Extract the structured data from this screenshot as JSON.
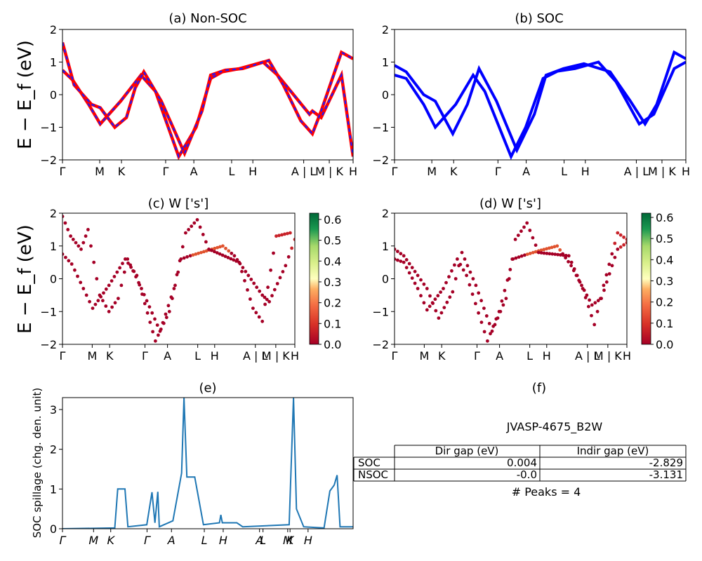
{
  "colors": {
    "nonsoc_red": "#ff0000",
    "dash_blue": "#1a1aff",
    "soc_blue": "#0000ff",
    "spill_line": "#1f77b4",
    "axis": "#000000"
  },
  "chart_data": [
    {
      "type": "line",
      "title": "(a) Non-SOC",
      "ylabel": "E − E_f (eV)",
      "ylim": [
        -2,
        2
      ],
      "yticks": [
        "2",
        "1",
        "0",
        "−1",
        "−2"
      ],
      "xticks": [
        "Γ",
        "M",
        "K",
        "Γ",
        "A",
        "L",
        "H",
        "A | L",
        "M | K",
        "H"
      ],
      "series_style": "red solid with blue dashes",
      "series": [
        {
          "values": [
            [
              0,
              0.75
            ],
            [
              0.35,
              0.45
            ],
            [
              0.9,
              -0.3
            ],
            [
              1.3,
              -0.9
            ],
            [
              2.0,
              -0.2
            ],
            [
              2.7,
              0.6
            ],
            [
              3.2,
              0.1
            ],
            [
              4.0,
              -1.9
            ],
            [
              4.6,
              -1.0
            ],
            [
              5.1,
              0.5
            ],
            [
              5.5,
              0.7
            ],
            [
              6.1,
              0.8
            ],
            [
              6.9,
              1.0
            ],
            [
              7.4,
              0.6
            ],
            [
              8.5,
              -0.6
            ],
            [
              8.6,
              -0.5
            ],
            [
              8.9,
              -0.7
            ],
            [
              9.6,
              0.6
            ],
            [
              10,
              -1.9
            ]
          ]
        },
        {
          "values": [
            [
              0,
              1.6
            ],
            [
              0.4,
              0.3
            ],
            [
              1.0,
              -0.3
            ],
            [
              1.3,
              -0.4
            ],
            [
              1.8,
              -1.0
            ],
            [
              2.2,
              -0.7
            ],
            [
              2.5,
              0.2
            ],
            [
              2.8,
              0.7
            ],
            [
              3.4,
              -0.2
            ],
            [
              4.2,
              -1.8
            ],
            [
              4.8,
              -0.5
            ],
            [
              5.1,
              0.6
            ],
            [
              5.6,
              0.75
            ],
            [
              6.2,
              0.8
            ],
            [
              7.1,
              1.05
            ],
            [
              7.6,
              0.3
            ],
            [
              8.2,
              -0.8
            ],
            [
              8.6,
              -1.2
            ],
            [
              8.9,
              -0.5
            ],
            [
              9.6,
              1.3
            ],
            [
              10,
              1.1
            ]
          ]
        }
      ]
    },
    {
      "type": "line",
      "title": "(b) SOC",
      "ylim": [
        -2,
        2
      ],
      "yticks": [
        "2",
        "1",
        "0",
        "−1",
        "−2"
      ],
      "xticks": [
        "Γ",
        "M",
        "K",
        "Γ",
        "A",
        "L",
        "H",
        "A | L",
        "M | K",
        "H"
      ],
      "series_style": "blue solid",
      "series": [
        {
          "values": [
            [
              0,
              0.6
            ],
            [
              0.4,
              0.5
            ],
            [
              1.0,
              -0.3
            ],
            [
              1.4,
              -1.0
            ],
            [
              2.1,
              -0.3
            ],
            [
              2.7,
              0.6
            ],
            [
              3.1,
              0.1
            ],
            [
              4.0,
              -1.9
            ],
            [
              4.5,
              -1.0
            ],
            [
              5.1,
              0.5
            ],
            [
              5.6,
              0.72
            ],
            [
              6.2,
              0.8
            ],
            [
              7.0,
              1.0
            ],
            [
              7.6,
              0.4
            ],
            [
              8.4,
              -0.9
            ],
            [
              8.9,
              -0.6
            ],
            [
              9.6,
              0.8
            ],
            [
              10,
              1.0
            ]
          ]
        },
        {
          "values": [
            [
              0,
              0.9
            ],
            [
              0.4,
              0.7
            ],
            [
              1.0,
              0.0
            ],
            [
              1.4,
              -0.2
            ],
            [
              2.0,
              -1.2
            ],
            [
              2.5,
              -0.3
            ],
            [
              2.9,
              0.8
            ],
            [
              3.5,
              -0.2
            ],
            [
              4.2,
              -1.7
            ],
            [
              4.8,
              -0.6
            ],
            [
              5.2,
              0.6
            ],
            [
              5.8,
              0.8
            ],
            [
              6.5,
              0.95
            ],
            [
              7.4,
              0.7
            ],
            [
              8.1,
              -0.2
            ],
            [
              8.6,
              -0.9
            ],
            [
              9.0,
              -0.3
            ],
            [
              9.6,
              1.3
            ],
            [
              10,
              1.1
            ]
          ]
        }
      ]
    },
    {
      "type": "scatter",
      "title": "(c)  W ['s']",
      "ylabel": "E − E_f (eV)",
      "ylim": [
        -2,
        2
      ],
      "yticks": [
        "2",
        "1",
        "0",
        "−1",
        "−2"
      ],
      "xticks": [
        "Γ",
        "M",
        "K",
        "Γ",
        "A",
        "L",
        "H",
        "A | L",
        "M | K",
        "H"
      ],
      "colorbar": {
        "ticks": [
          "0.6",
          "0.5",
          "0.4",
          "0.3",
          "0.2",
          "0.1",
          "0.0"
        ],
        "range": [
          0,
          0.63
        ],
        "cmap": "RdYlGn"
      },
      "series": [
        {
          "values": [
            [
              0,
              0.75
            ],
            [
              0.4,
              0.45
            ],
            [
              0.9,
              -0.3
            ],
            [
              1.3,
              -0.9
            ],
            [
              2.0,
              -0.2
            ],
            [
              2.7,
              0.6
            ],
            [
              3.2,
              0.1
            ],
            [
              4.0,
              -1.9
            ],
            [
              4.6,
              -1.0
            ],
            [
              5.1,
              0.6
            ],
            [
              5.5,
              0.7
            ],
            [
              6.2,
              0.85
            ],
            [
              6.9,
              1.0
            ],
            [
              7.4,
              0.7
            ],
            [
              8.6,
              -0.5
            ],
            [
              8.9,
              -0.7
            ],
            [
              9.6,
              0.4
            ],
            [
              10,
              1.2
            ]
          ]
        },
        {
          "values": [
            [
              0,
              1.9
            ],
            [
              0.35,
              1.3
            ],
            [
              0.8,
              0.9
            ],
            [
              1.1,
              1.5
            ],
            [
              1.6,
              -0.5
            ],
            [
              2.0,
              -1.0
            ],
            [
              2.4,
              -0.6
            ],
            [
              2.8,
              0.6
            ],
            [
              3.4,
              -0.3
            ],
            [
              4.2,
              -1.6
            ],
            [
              4.8,
              -0.3
            ],
            [
              5.3,
              1.4
            ],
            [
              5.8,
              1.8
            ],
            [
              6.3,
              0.9
            ],
            [
              7.6,
              0.5
            ],
            [
              8.2,
              -0.9
            ],
            [
              8.6,
              -1.3
            ],
            [
              9.2,
              1.3
            ],
            [
              9.8,
              1.4
            ]
          ]
        }
      ]
    },
    {
      "type": "scatter",
      "title": "(d) W ['s']",
      "ylim": [
        -2,
        2
      ],
      "yticks": [
        "2",
        "1",
        "0",
        "−1",
        "−2"
      ],
      "xticks": [
        "Γ",
        "M",
        "K",
        "Γ",
        "A",
        "L",
        "H",
        "A | L",
        "M | K",
        "H"
      ],
      "colorbar": {
        "ticks": [
          "0.6",
          "0.5",
          "0.4",
          "0.3",
          "0.2",
          "0.1",
          "0.0"
        ],
        "range": [
          0,
          0.62
        ],
        "cmap": "RdYlGn"
      },
      "series": [
        {
          "values": [
            [
              0,
              0.6
            ],
            [
              0.4,
              0.5
            ],
            [
              1.0,
              -0.3
            ],
            [
              1.4,
              -0.95
            ],
            [
              2.1,
              -0.3
            ],
            [
              2.7,
              0.6
            ],
            [
              3.1,
              0.1
            ],
            [
              4.0,
              -1.9
            ],
            [
              4.5,
              -1.0
            ],
            [
              5.1,
              0.6
            ],
            [
              5.6,
              0.72
            ],
            [
              6.2,
              0.85
            ],
            [
              7.0,
              1.0
            ],
            [
              7.6,
              0.4
            ],
            [
              8.5,
              -0.8
            ],
            [
              8.9,
              -0.6
            ],
            [
              9.6,
              0.9
            ],
            [
              10,
              1.1
            ]
          ]
        },
        {
          "values": [
            [
              0,
              0.9
            ],
            [
              0.4,
              0.7
            ],
            [
              1.0,
              0.1
            ],
            [
              1.4,
              -0.3
            ],
            [
              1.9,
              -1.2
            ],
            [
              2.5,
              -0.4
            ],
            [
              2.9,
              0.8
            ],
            [
              3.5,
              -0.2
            ],
            [
              4.2,
              -1.6
            ],
            [
              4.8,
              -0.6
            ],
            [
              5.2,
              1.2
            ],
            [
              5.7,
              1.7
            ],
            [
              6.2,
              0.8
            ],
            [
              7.5,
              0.7
            ],
            [
              8.1,
              -0.3
            ],
            [
              8.6,
              -1.4
            ],
            [
              9.0,
              -0.2
            ],
            [
              9.6,
              1.4
            ],
            [
              10,
              1.2
            ]
          ]
        }
      ]
    },
    {
      "type": "line",
      "title": "(e)",
      "ylabel": "SOC spillage (chg. den. unit)",
      "ylim": [
        0,
        3.3
      ],
      "yticks": [
        "3",
        "2",
        "1",
        "0"
      ],
      "xticks": [
        "Γ",
        "M",
        "K",
        "Γ",
        "A",
        "L",
        "H",
        "A",
        "L",
        "M",
        "K",
        "H"
      ],
      "series": [
        {
          "values": [
            [
              0,
              0
            ],
            [
              1.8,
              0.02
            ],
            [
              1.9,
              1.0
            ],
            [
              2.15,
              1.0
            ],
            [
              2.25,
              0.05
            ],
            [
              2.9,
              0.1
            ],
            [
              3.08,
              0.92
            ],
            [
              3.18,
              0.15
            ],
            [
              3.28,
              0.93
            ],
            [
              3.33,
              0.05
            ],
            [
              3.8,
              0.2
            ],
            [
              4.1,
              1.4
            ],
            [
              4.18,
              3.3
            ],
            [
              4.28,
              1.3
            ],
            [
              4.55,
              1.3
            ],
            [
              4.85,
              0.1
            ],
            [
              5.4,
              0.15
            ],
            [
              5.45,
              0.35
            ],
            [
              5.5,
              0.15
            ],
            [
              6.0,
              0.15
            ],
            [
              6.2,
              0.05
            ],
            [
              7.8,
              0.1
            ],
            [
              7.95,
              3.3
            ],
            [
              8.05,
              0.5
            ],
            [
              8.3,
              0.05
            ],
            [
              9.0,
              0.02
            ],
            [
              9.2,
              0.95
            ],
            [
              9.35,
              1.1
            ],
            [
              9.45,
              1.35
            ],
            [
              9.55,
              0.05
            ],
            [
              10,
              0.05
            ]
          ]
        }
      ]
    },
    {
      "type": "table",
      "title": "(f)",
      "caption": "JVASP-4675_B2W",
      "columns": [
        "",
        "Dir gap (eV)",
        "Indir gap (eV)"
      ],
      "rows": [
        [
          "SOC",
          "0.004",
          "-2.829"
        ],
        [
          "NSOC",
          "-0.0",
          "-3.131"
        ]
      ],
      "footer": "# Peaks = 4"
    }
  ]
}
